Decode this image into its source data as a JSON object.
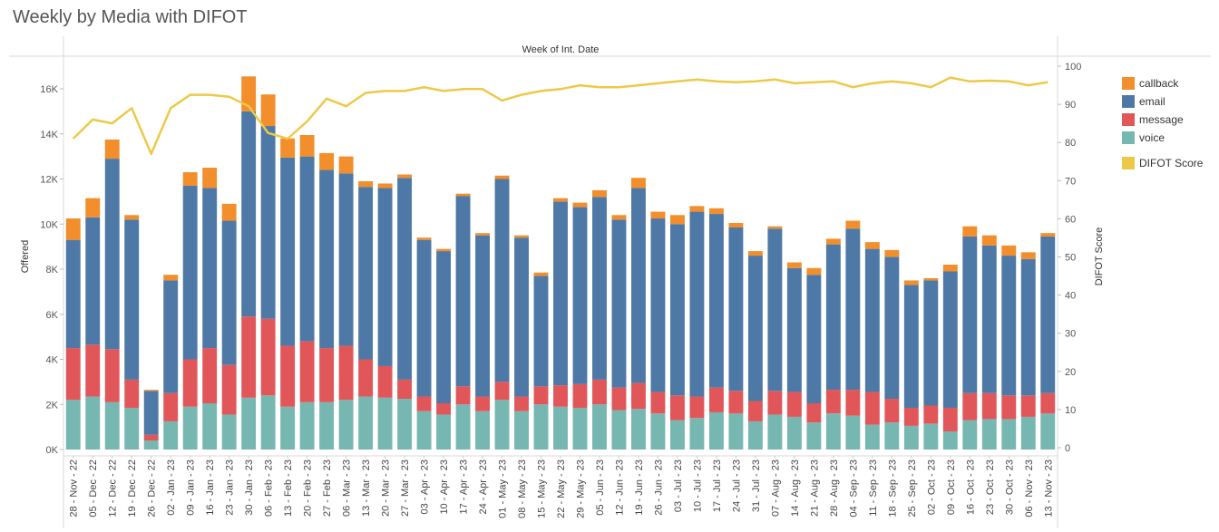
{
  "title": "Weekly by Media with DIFOT",
  "chart_data": {
    "type": "bar",
    "stacked": true,
    "top_label": "Week of Int. Date",
    "ylabel": "Offered",
    "y2label": "DIFOT Score",
    "ylim": [
      0,
      17000
    ],
    "y2lim": [
      0,
      102
    ],
    "yticks": [
      0,
      2000,
      4000,
      6000,
      8000,
      10000,
      12000,
      14000,
      16000
    ],
    "ytick_labels": [
      "0K",
      "2K",
      "4K",
      "6K",
      "8K",
      "10K",
      "12K",
      "14K",
      "16K"
    ],
    "y2ticks": [
      0,
      10,
      20,
      30,
      40,
      50,
      60,
      70,
      80,
      90,
      100
    ],
    "y2tick_labels": [
      "0",
      "10",
      "20",
      "30",
      "40",
      "50",
      "60",
      "70",
      "80",
      "90",
      "100"
    ],
    "categories": [
      "28 - Nov - 22",
      "05 - Dec - 22",
      "12 - Dec - 22",
      "19 - Dec - 22",
      "26 - Dec - 22",
      "02 - Jan - 23",
      "09 - Jan - 23",
      "16 - Jan - 23",
      "23 - Jan - 23",
      "30 - Jan - 23",
      "06 - Feb - 23",
      "13 - Feb - 23",
      "20 - Feb - 23",
      "27 - Feb - 23",
      "06 - Mar - 23",
      "13 - Mar - 23",
      "20 - Mar - 23",
      "27 - Mar - 23",
      "03 - Apr - 23",
      "10 - Apr - 23",
      "17 - Apr - 23",
      "24 - Apr - 23",
      "01 - May - 23",
      "08 - May - 23",
      "15 - May - 23",
      "22 - May - 23",
      "29 - May - 23",
      "05 - Jun - 23",
      "12 - Jun - 23",
      "19 - Jun - 23",
      "26 - Jun - 23",
      "03 - Jul - 23",
      "10 - Jul - 23",
      "17 - Jul - 23",
      "24 - Jul - 23",
      "31 - Jul - 23",
      "07 - Aug - 23",
      "14 - Aug - 23",
      "21 - Aug - 23",
      "28 - Aug - 23",
      "04 - Sep - 23",
      "11 - Sep - 23",
      "18 - Sep - 23",
      "25 - Sep - 23",
      "02 - Oct - 23",
      "09 - Oct - 23",
      "16 - Oct - 23",
      "23 - Oct - 23",
      "30 - Oct - 23",
      "06 - Nov - 23",
      "13 - Nov - 23"
    ],
    "series": [
      {
        "name": "voice",
        "color": "#76b7b2",
        "values": [
          2200,
          2350,
          2100,
          1850,
          400,
          1250,
          1900,
          2050,
          1550,
          2300,
          2400,
          1900,
          2100,
          2100,
          2200,
          2350,
          2300,
          2250,
          1700,
          1550,
          2000,
          1700,
          2200,
          1700,
          2000,
          1900,
          1850,
          2000,
          1750,
          1800,
          1600,
          1300,
          1400,
          1650,
          1600,
          1250,
          1550,
          1450,
          1200,
          1600,
          1500,
          1100,
          1200,
          1050,
          1150,
          800,
          1300,
          1350,
          1350,
          1450,
          1600
        ]
      },
      {
        "name": "message",
        "color": "#e15759",
        "values": [
          2300,
          2300,
          2350,
          1250,
          250,
          1250,
          2100,
          2450,
          2200,
          3600,
          3400,
          2700,
          2700,
          2400,
          2400,
          1650,
          1400,
          850,
          650,
          500,
          800,
          650,
          800,
          650,
          800,
          950,
          1050,
          1100,
          1000,
          1150,
          950,
          1100,
          950,
          1100,
          1000,
          900,
          1050,
          1100,
          850,
          1050,
          1150,
          1450,
          1050,
          800,
          800,
          1050,
          1200,
          1150,
          1050,
          950,
          900
        ]
      },
      {
        "name": "email",
        "color": "#4e79a7",
        "values": [
          4800,
          5650,
          8450,
          7100,
          1950,
          5000,
          7700,
          7100,
          6400,
          9100,
          8550,
          8350,
          8200,
          7900,
          7650,
          7650,
          7900,
          8950,
          6950,
          6750,
          8450,
          7150,
          9000,
          7050,
          4900,
          8150,
          7850,
          8100,
          7450,
          8650,
          7700,
          7600,
          8200,
          7700,
          7250,
          6450,
          7200,
          5500,
          5700,
          6450,
          7150,
          6350,
          6300,
          5450,
          5550,
          6050,
          6950,
          6550,
          6200,
          6050,
          6950
        ]
      },
      {
        "name": "callback",
        "color": "#f28e2b",
        "values": [
          950,
          850,
          850,
          200,
          50,
          250,
          600,
          900,
          750,
          1550,
          1400,
          850,
          950,
          750,
          750,
          250,
          200,
          150,
          100,
          100,
          100,
          100,
          150,
          100,
          150,
          150,
          200,
          300,
          200,
          450,
          300,
          400,
          250,
          250,
          200,
          200,
          100,
          250,
          300,
          250,
          350,
          300,
          300,
          200,
          100,
          300,
          450,
          450,
          450,
          300,
          150
        ]
      }
    ],
    "line": {
      "name": "DIFOT Score",
      "color": "#edc948",
      "values": [
        81,
        86,
        85,
        89,
        77,
        89,
        92.5,
        92.5,
        92,
        89.5,
        82.5,
        81,
        85.5,
        91.5,
        89.5,
        93,
        93.5,
        93.5,
        94.5,
        93.5,
        94,
        94,
        91,
        92.5,
        93.5,
        94,
        95,
        94.5,
        94.5,
        95,
        95.5,
        96,
        96.5,
        96,
        95.8,
        96,
        96.5,
        95.5,
        95.8,
        96,
        94.5,
        95.5,
        96,
        95.5,
        94.5,
        97,
        96,
        96.2,
        96,
        95,
        95.8
      ]
    },
    "legend": [
      "callback",
      "email",
      "message",
      "voice",
      "DIFOT Score"
    ],
    "legend_position": "right",
    "grid": false
  }
}
